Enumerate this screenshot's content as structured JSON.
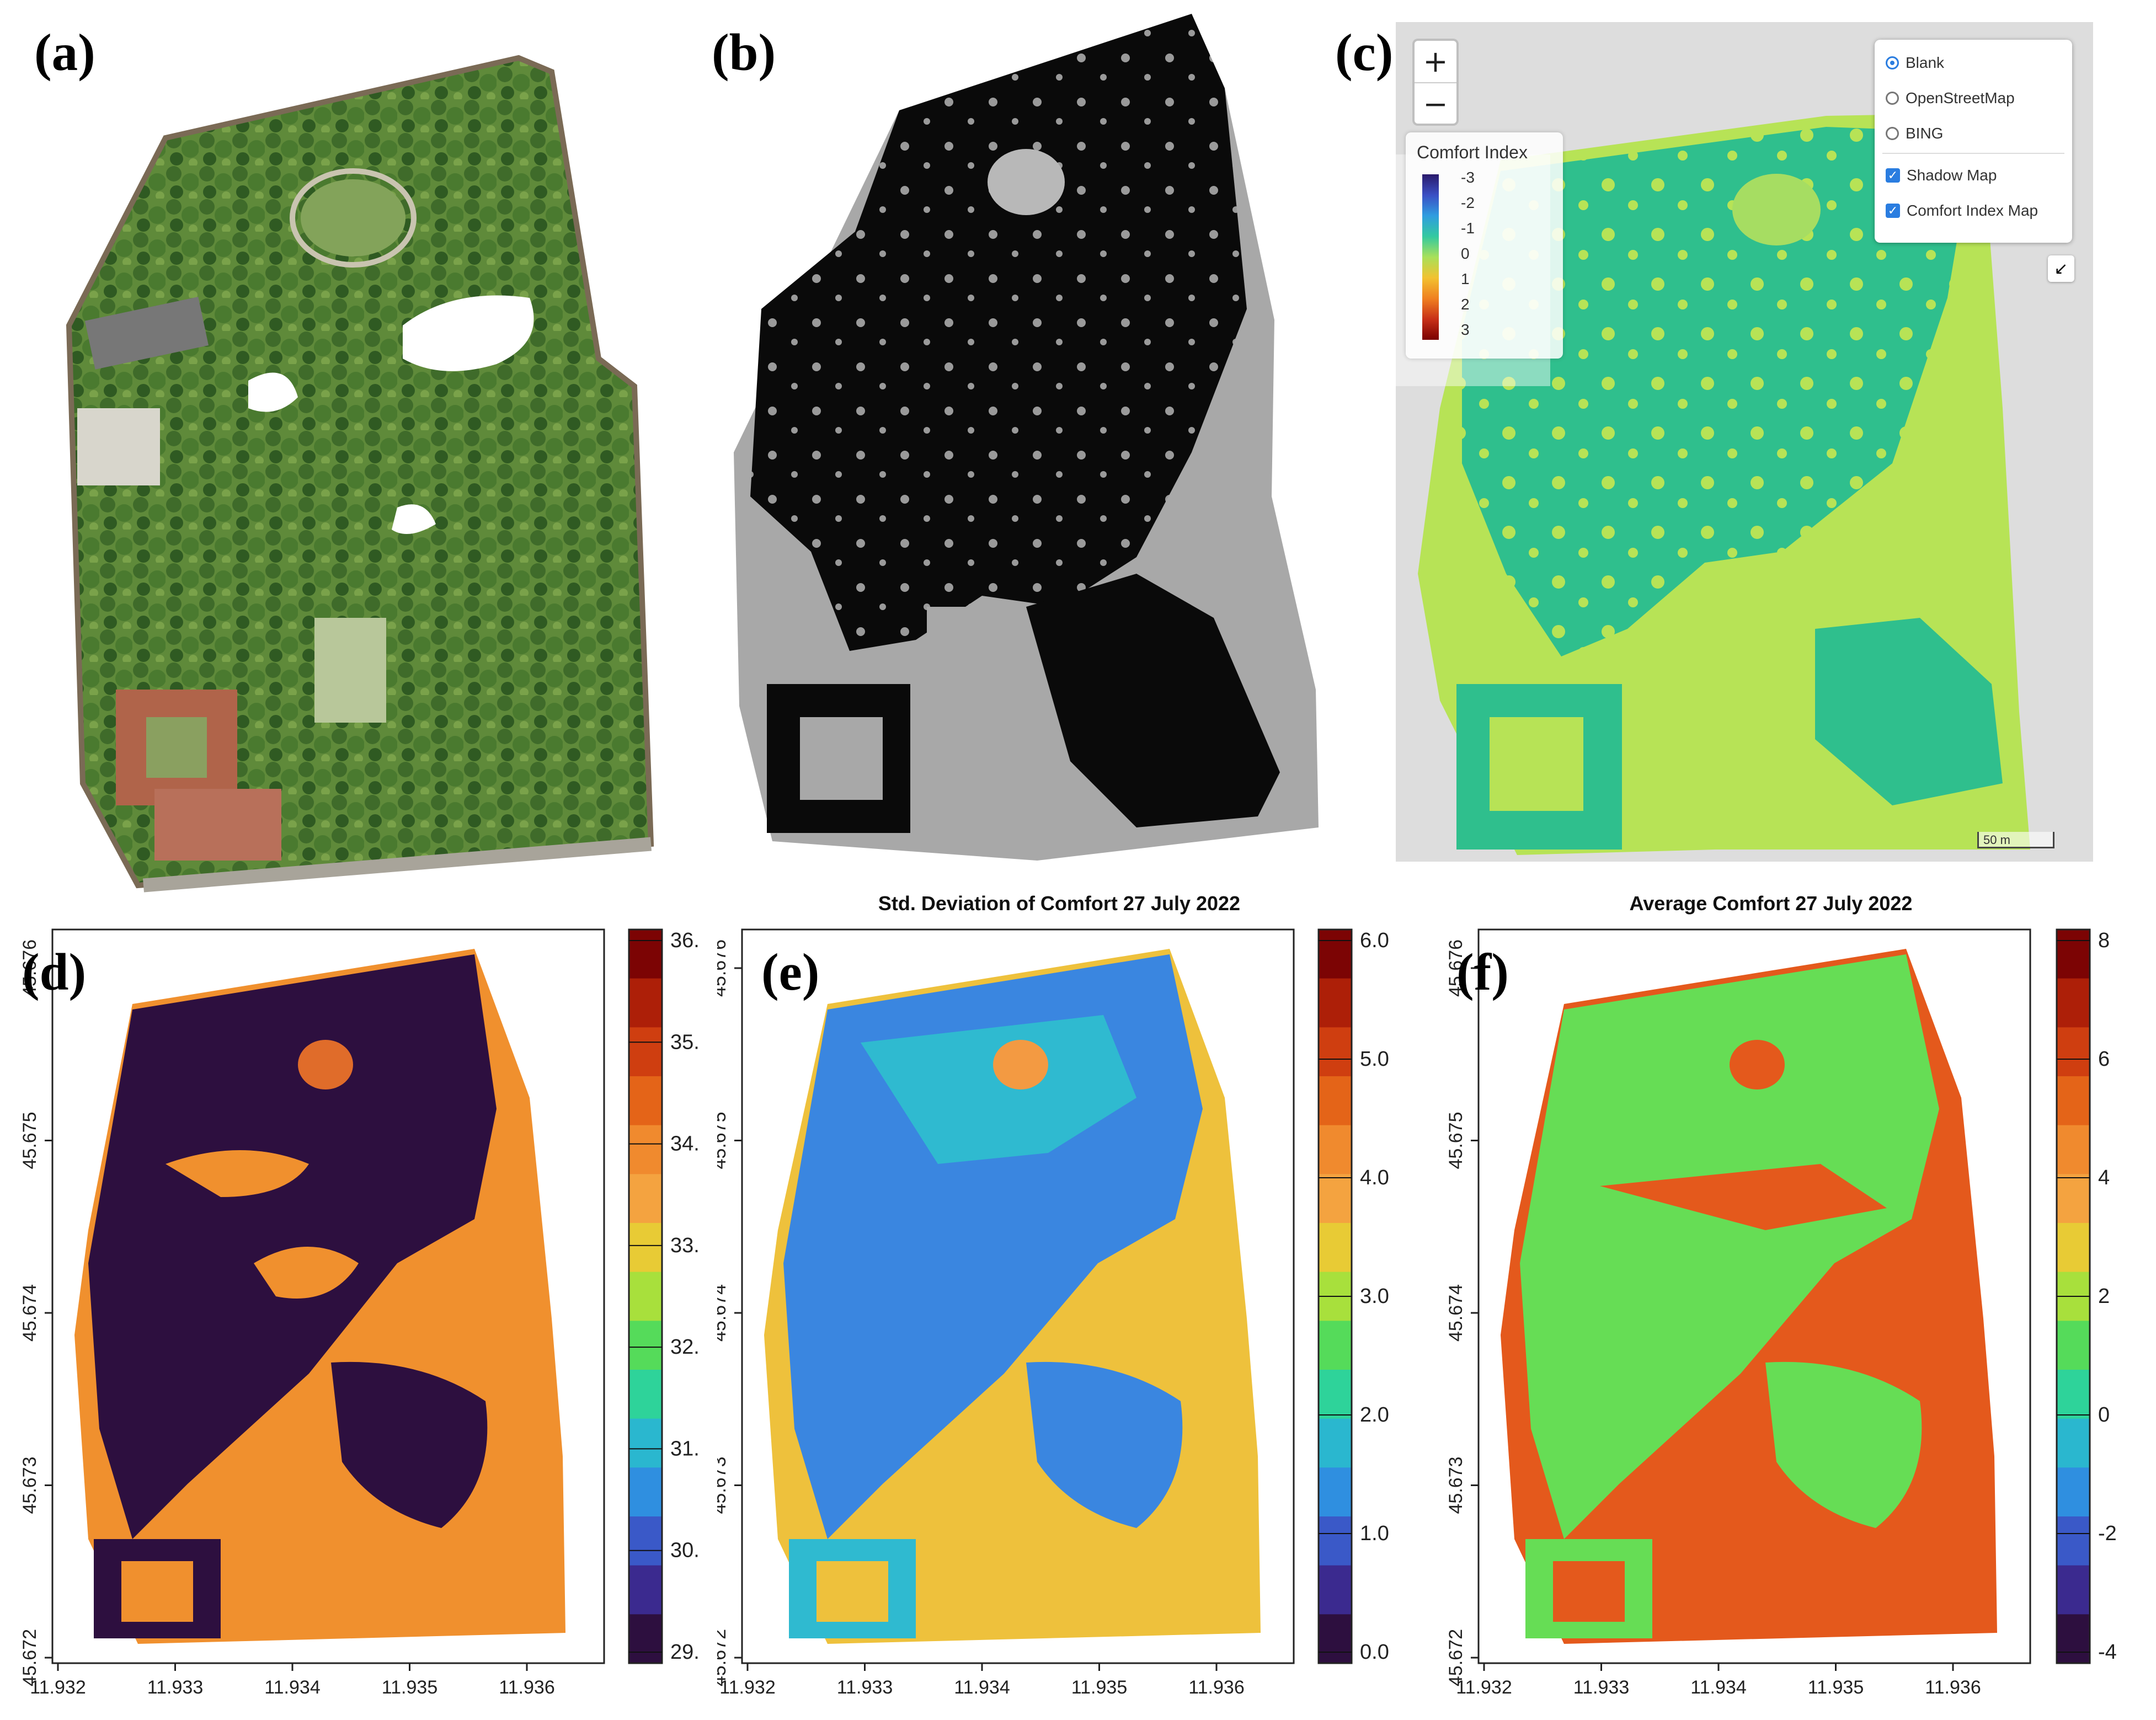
{
  "panels": {
    "a": {
      "label": "(a)"
    },
    "b": {
      "label": "(b)"
    },
    "c": {
      "label": "(c)",
      "zoom_in": "+",
      "zoom_out": "−",
      "legend_title": "Comfort Index",
      "legend_values": [
        "-3",
        "-2",
        "-1",
        "0",
        "1",
        "2",
        "3"
      ],
      "base_layers": [
        {
          "label": "Blank",
          "selected": true
        },
        {
          "label": "OpenStreetMap",
          "selected": false
        },
        {
          "label": "BING",
          "selected": false
        }
      ],
      "overlays": [
        {
          "label": "Shadow Map",
          "checked": true
        },
        {
          "label": "Comfort Index Map",
          "checked": true
        }
      ],
      "fullscreen_icon": "↙",
      "scale_label": "50 m"
    },
    "d": {
      "label": "(d)",
      "title": "",
      "colorbar_labels": [
        "36.",
        "35.",
        "34.",
        "33.",
        "32.",
        "31.",
        "30.",
        "29."
      ],
      "colorbar_range": [
        28.5,
        36.5
      ],
      "colors": [
        "#2d0f3f",
        "#3b2a8f",
        "#3a59c8",
        "#2f8fe0",
        "#2ab7cf",
        "#2ed39a",
        "#55db5a",
        "#a8e03c",
        "#e8cb35",
        "#f4a340",
        "#f08a2e",
        "#e46418",
        "#cf3e10",
        "#ad1f08",
        "#7c0404"
      ]
    },
    "e": {
      "label": "(e)",
      "title": "Std. Deviation of Comfort 27 July 2022",
      "colorbar_labels": [
        "6.0",
        "5.0",
        "4.0",
        "3.0",
        "2.0",
        "1.0",
        "0.0"
      ],
      "colorbar_range": [
        0,
        6
      ]
    },
    "f": {
      "label": "(f)",
      "title": "Average Comfort 27 July 2022",
      "colorbar_labels": [
        "8",
        "6",
        "4",
        "2",
        "0",
        "-2",
        "-4"
      ],
      "colorbar_range": [
        -4,
        9
      ]
    }
  },
  "axes": {
    "x_ticks": [
      "11.932",
      "11.933",
      "11.934",
      "11.935",
      "11.936"
    ],
    "y_ticks": [
      "45.676",
      "45.675",
      "45.674",
      "45.673",
      "45.672"
    ]
  }
}
